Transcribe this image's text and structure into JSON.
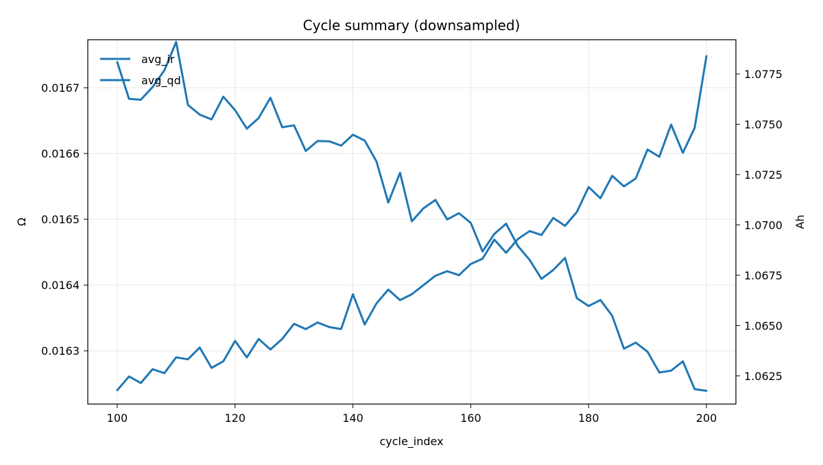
{
  "chart_data": {
    "type": "line",
    "title": "Cycle summary (downsampled)",
    "xlabel": "cycle_index",
    "ylabel_left": "Ω",
    "ylabel_right": "Ah",
    "xlim": [
      95,
      205
    ],
    "ylim_left": [
      0.016219,
      0.016773
    ],
    "ylim_right": [
      1.0611,
      1.0792
    ],
    "grid": true,
    "legend_position": "upper-left",
    "x_ticks": [
      100,
      120,
      140,
      160,
      180,
      200
    ],
    "y_ticks_left": [
      0.0163,
      0.0164,
      0.0165,
      0.0166,
      0.0167
    ],
    "y_ticks_right": [
      1.0625,
      1.065,
      1.0675,
      1.07,
      1.0725,
      1.075,
      1.0775
    ],
    "x": [
      100,
      102,
      104,
      106,
      108,
      110,
      112,
      114,
      116,
      118,
      120,
      122,
      124,
      126,
      128,
      130,
      132,
      134,
      136,
      138,
      140,
      142,
      144,
      146,
      148,
      150,
      152,
      154,
      156,
      158,
      160,
      162,
      164,
      166,
      168,
      170,
      172,
      174,
      176,
      178,
      180,
      182,
      184,
      186,
      188,
      190,
      192,
      194,
      196,
      198,
      200
    ],
    "series": [
      {
        "name": "avg_ir",
        "axis": "left",
        "color": "#1f77b4",
        "values": [
          0.01624,
          0.016261,
          0.016251,
          0.016272,
          0.016266,
          0.01629,
          0.016287,
          0.016305,
          0.016274,
          0.016284,
          0.016315,
          0.01629,
          0.016318,
          0.016302,
          0.016318,
          0.016341,
          0.016333,
          0.016343,
          0.016336,
          0.016333,
          0.016386,
          0.01634,
          0.016372,
          0.016393,
          0.016377,
          0.016386,
          0.0164,
          0.016414,
          0.016421,
          0.016415,
          0.016432,
          0.01644,
          0.016469,
          0.016449,
          0.01647,
          0.016482,
          0.016476,
          0.016502,
          0.01649,
          0.016511,
          0.016549,
          0.016532,
          0.016566,
          0.01655,
          0.016562,
          0.016606,
          0.016595,
          0.016644,
          0.016601,
          0.016639,
          0.016748
        ]
      },
      {
        "name": "avg_qd",
        "axis": "right",
        "color": "#1f77b4",
        "values": [
          1.07809,
          1.07626,
          1.07622,
          1.07685,
          1.07768,
          1.07909,
          1.07596,
          1.07548,
          1.07524,
          1.07637,
          1.0757,
          1.07478,
          1.07531,
          1.07632,
          1.07485,
          1.07495,
          1.07367,
          1.07417,
          1.07415,
          1.07394,
          1.07448,
          1.07419,
          1.07315,
          1.07111,
          1.07259,
          1.07018,
          1.07083,
          1.07124,
          1.07027,
          1.07058,
          1.0701,
          1.06868,
          1.06955,
          1.07006,
          1.06895,
          1.06826,
          1.06732,
          1.06776,
          1.06836,
          1.06636,
          1.06597,
          1.06627,
          1.06549,
          1.06385,
          1.06415,
          1.0637,
          1.06267,
          1.06276,
          1.06322,
          1.06184,
          1.06176
        ]
      }
    ]
  }
}
